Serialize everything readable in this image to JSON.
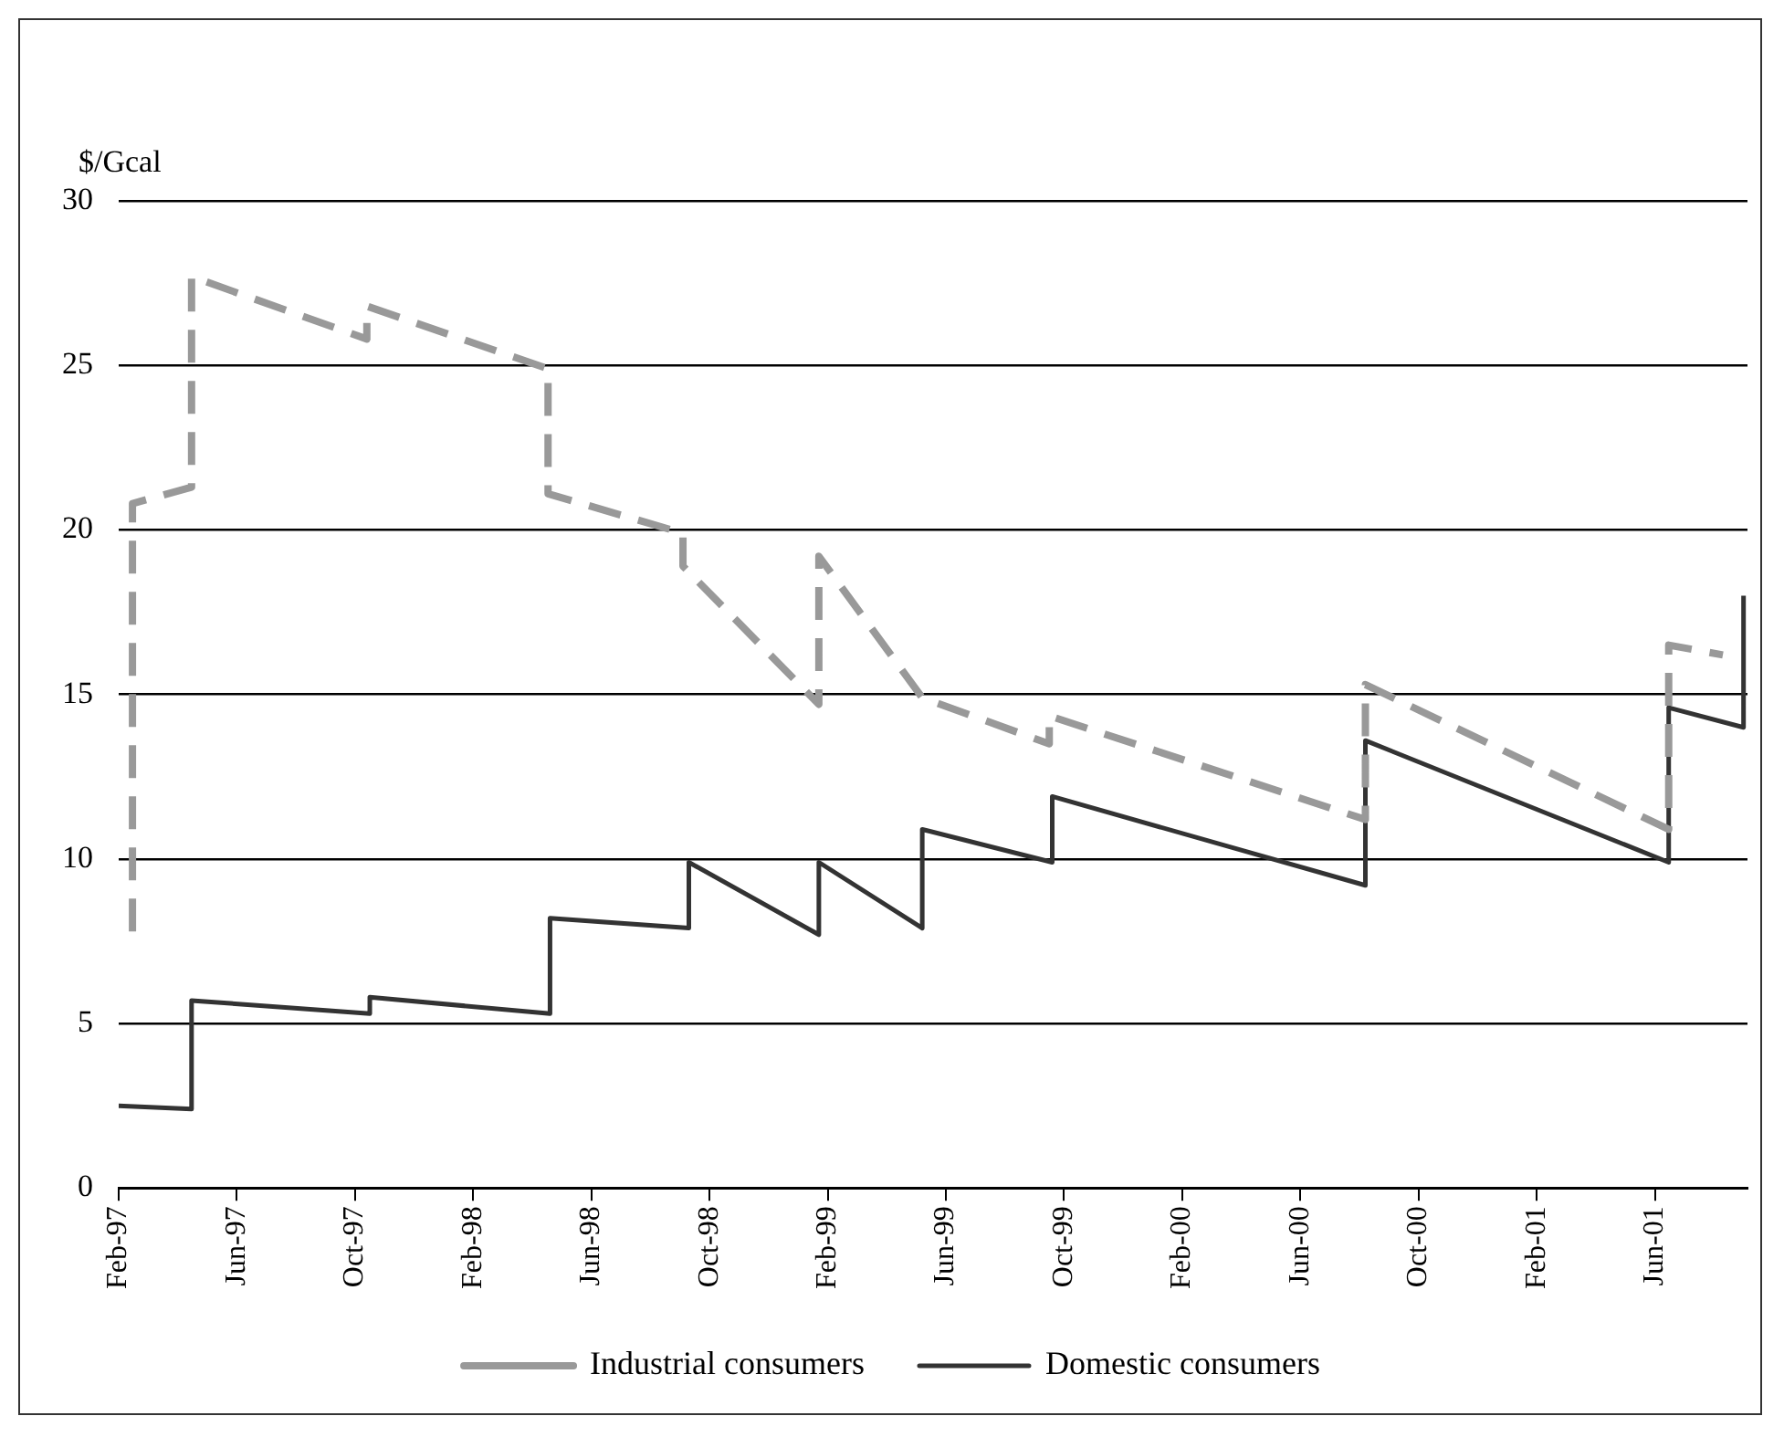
{
  "chart_data": {
    "type": "line",
    "ylabel": "$/Gcal",
    "legend": "bottom",
    "grid": "y",
    "marker": "none",
    "xlim": [
      "1997-02-01",
      "2001-09-05"
    ],
    "xticks": [
      {
        "value": "1997-02",
        "label": "Feb-97"
      },
      {
        "value": "1997-06",
        "label": "Jun-97"
      },
      {
        "value": "1997-10",
        "label": "Oct-97"
      },
      {
        "value": "1998-02",
        "label": "Feb-98"
      },
      {
        "value": "1998-06",
        "label": "Jun-98"
      },
      {
        "value": "1998-10",
        "label": "Oct-98"
      },
      {
        "value": "1999-02",
        "label": "Feb-99"
      },
      {
        "value": "1999-06",
        "label": "Jun-99"
      },
      {
        "value": "1999-10",
        "label": "Oct-99"
      },
      {
        "value": "2000-02",
        "label": "Feb-00"
      },
      {
        "value": "2000-06",
        "label": "Jun-00"
      },
      {
        "value": "2000-10",
        "label": "Oct-00"
      },
      {
        "value": "2001-02",
        "label": "Feb-01"
      },
      {
        "value": "2001-06",
        "label": "Jun-01"
      }
    ],
    "ylim": [
      0,
      30
    ],
    "yticks": [
      0,
      5,
      10,
      15,
      20,
      25,
      30
    ],
    "series": [
      {
        "name": "Industrial consumers",
        "color": "#999999",
        "line_style": "dashed",
        "x": [
          "1997-02-15",
          "1997-02-15",
          "1997-04-15",
          "1997-04-15",
          "1997-10-13",
          "1997-10-13",
          "1998-04-17",
          "1998-04-17",
          "1998-09-04",
          "1998-09-04",
          "1999-01-22",
          "1999-01-22",
          "1999-05-07",
          "1999-09-16",
          "1999-09-16",
          "2000-08-07",
          "2000-08-07",
          "2001-06-15",
          "2001-06-15",
          "2001-08-10"
        ],
        "values": [
          7.8,
          20.8,
          21.3,
          27.7,
          25.8,
          26.8,
          24.9,
          21.1,
          19.9,
          18.9,
          14.7,
          19.2,
          14.9,
          13.5,
          14.35,
          11.2,
          15.3,
          10.9,
          16.5,
          16.2
        ]
      },
      {
        "name": "Domestic consumers",
        "color": "#333333",
        "line_style": "solid",
        "x": [
          "1997-02-01",
          "1997-04-15",
          "1997-04-15",
          "1997-10-16",
          "1997-10-16",
          "1998-04-19",
          "1998-04-19",
          "1998-09-10",
          "1998-09-10",
          "1999-01-22",
          "1999-01-22",
          "1999-05-07",
          "1999-05-07",
          "1999-09-19",
          "1999-09-19",
          "2000-08-07",
          "2000-08-07",
          "2001-06-15",
          "2001-06-15",
          "2001-09-01",
          "2001-09-01"
        ],
        "values": [
          2.5,
          2.4,
          5.7,
          5.3,
          5.8,
          5.3,
          8.2,
          7.9,
          9.9,
          7.7,
          9.9,
          7.9,
          10.9,
          9.9,
          11.9,
          9.2,
          13.6,
          9.9,
          14.6,
          14.0,
          18.0
        ]
      }
    ]
  }
}
